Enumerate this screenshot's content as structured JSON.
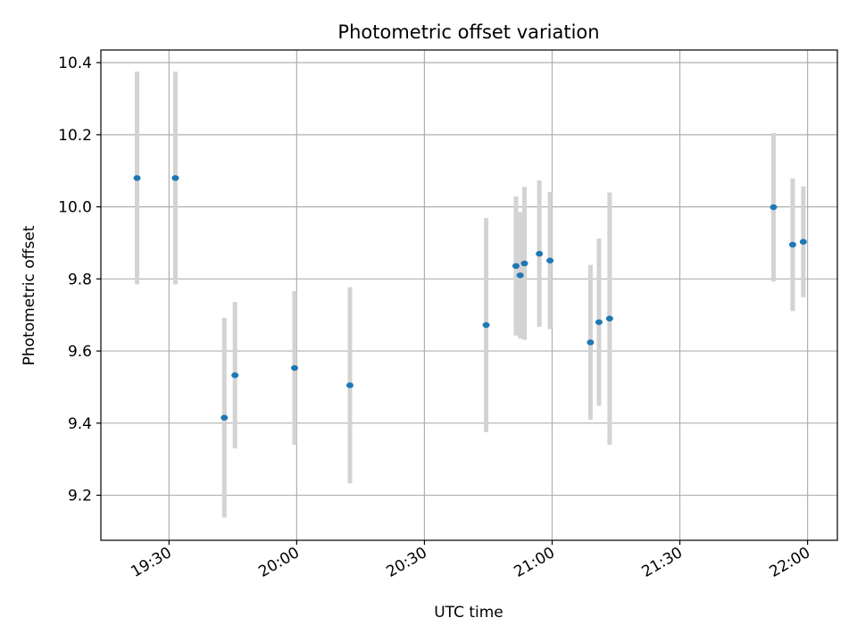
{
  "chart_data": {
    "type": "scatter",
    "title": "Photometric offset variation",
    "xlabel": "UTC time",
    "ylabel": "Photometric offset",
    "xlim": [
      "19:14",
      "22:07"
    ],
    "ylim": [
      9.075,
      10.435
    ],
    "xticks": [
      "19:30",
      "20:00",
      "20:30",
      "21:00",
      "21:30",
      "22:00"
    ],
    "yticks": [
      "9.2",
      "9.4",
      "9.6",
      "9.8",
      "10.0",
      "10.2",
      "10.4"
    ],
    "grid": true,
    "series": [
      {
        "marker_color": "#1f77b4",
        "errorbar_color": "#d3d3d3",
        "points": [
          {
            "x": "19:22:30",
            "y": 10.08,
            "err": 0.295
          },
          {
            "x": "19:31:30",
            "y": 10.08,
            "err": 0.295
          },
          {
            "x": "19:43:00",
            "y": 9.415,
            "err": 0.277
          },
          {
            "x": "19:45:30",
            "y": 9.533,
            "err": 0.203
          },
          {
            "x": "19:59:30",
            "y": 9.553,
            "err": 0.213
          },
          {
            "x": "20:12:30",
            "y": 9.505,
            "err": 0.272
          },
          {
            "x": "20:44:30",
            "y": 9.672,
            "err": 0.297
          },
          {
            "x": "20:51:30",
            "y": 9.836,
            "err": 0.193
          },
          {
            "x": "20:52:30",
            "y": 9.81,
            "err": 0.175
          },
          {
            "x": "20:53:30",
            "y": 9.843,
            "err": 0.212
          },
          {
            "x": "20:57:00",
            "y": 9.87,
            "err": 0.203
          },
          {
            "x": "20:59:30",
            "y": 9.851,
            "err": 0.19
          },
          {
            "x": "21:09:00",
            "y": 9.624,
            "err": 0.215
          },
          {
            "x": "21:11:00",
            "y": 9.68,
            "err": 0.232
          },
          {
            "x": "21:13:30",
            "y": 9.69,
            "err": 0.35
          },
          {
            "x": "21:52:00",
            "y": 9.999,
            "err": 0.206
          },
          {
            "x": "21:56:30",
            "y": 9.895,
            "err": 0.184
          },
          {
            "x": "21:59:00",
            "y": 9.903,
            "err": 0.154
          }
        ]
      }
    ]
  }
}
